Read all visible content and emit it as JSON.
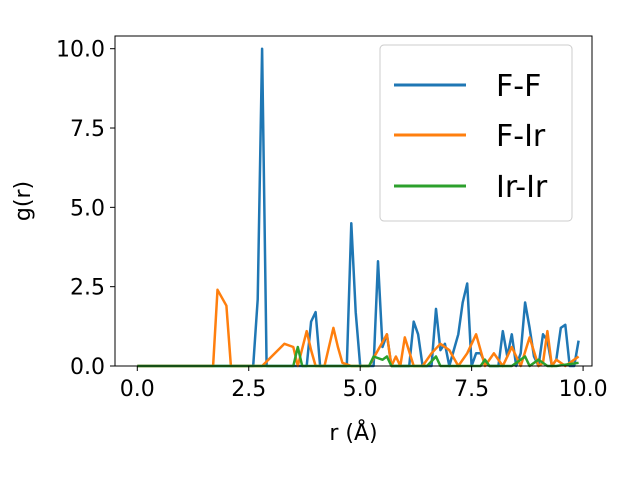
{
  "chart_data": {
    "type": "line",
    "xlabel": "r (Å)",
    "ylabel": "g(r)",
    "xlim": [
      -0.5,
      10.2
    ],
    "ylim": [
      0,
      10.4
    ],
    "xticks": [
      0.0,
      2.5,
      5.0,
      7.5,
      10.0
    ],
    "xtick_labels": [
      "0.0",
      "2.5",
      "5.0",
      "7.5",
      "10.0"
    ],
    "yticks": [
      0.0,
      2.5,
      5.0,
      7.5,
      10.0
    ],
    "ytick_labels": [
      "0.0",
      "2.5",
      "5.0",
      "7.5",
      "10.0"
    ],
    "grid": false,
    "legend_position": "top-right",
    "series": [
      {
        "name": "F-F",
        "color": "#1f77b4",
        "x": [
          0.0,
          2.5,
          2.6,
          2.7,
          2.8,
          2.9,
          3.0,
          3.6,
          3.7,
          3.8,
          3.9,
          4.0,
          4.1,
          4.5,
          4.6,
          4.7,
          4.8,
          4.9,
          5.0,
          5.3,
          5.4,
          5.5,
          5.6,
          5.7,
          5.8,
          6.1,
          6.2,
          6.3,
          6.4,
          6.5,
          6.6,
          6.7,
          6.8,
          6.9,
          7.0,
          7.1,
          7.2,
          7.3,
          7.4,
          7.5,
          7.6,
          7.7,
          7.8,
          7.9,
          8.0,
          8.1,
          8.2,
          8.3,
          8.4,
          8.5,
          8.6,
          8.7,
          8.8,
          8.9,
          9.0,
          9.1,
          9.2,
          9.3,
          9.4,
          9.5,
          9.6,
          9.7,
          9.8,
          9.9
        ],
        "y": [
          0.0,
          0.0,
          0.0,
          2.1,
          10.0,
          0.0,
          0.0,
          0.0,
          0.0,
          0.0,
          1.4,
          1.7,
          0.0,
          0.0,
          0.0,
          0.0,
          4.5,
          1.7,
          0.0,
          0.0,
          3.3,
          0.6,
          1.0,
          0.0,
          0.0,
          0.0,
          1.4,
          1.0,
          0.0,
          0.0,
          0.0,
          1.8,
          0.5,
          0.7,
          0.0,
          0.5,
          1.0,
          2.0,
          2.6,
          0.0,
          0.4,
          0.4,
          0.1,
          0.0,
          0.0,
          0.0,
          1.1,
          0.3,
          1.0,
          0.0,
          0.4,
          2.0,
          1.2,
          0.3,
          0.0,
          1.0,
          0.8,
          0.0,
          0.2,
          1.2,
          1.3,
          0.0,
          0.0,
          0.8
        ]
      },
      {
        "name": "F-Ir",
        "color": "#ff7f0e",
        "x": [
          0.0,
          1.7,
          1.8,
          2.0,
          2.1,
          2.8,
          3.3,
          3.5,
          3.6,
          3.8,
          3.9,
          4.0,
          4.2,
          4.4,
          4.5,
          4.6,
          4.8,
          5.0,
          5.2,
          5.4,
          5.6,
          5.7,
          5.8,
          5.9,
          6.0,
          6.2,
          6.4,
          6.6,
          6.8,
          7.0,
          7.2,
          7.4,
          7.6,
          7.8,
          8.0,
          8.2,
          8.4,
          8.6,
          8.8,
          9.0,
          9.1,
          9.2,
          9.3,
          9.4,
          9.6,
          9.8,
          9.9
        ],
        "y": [
          0.0,
          0.0,
          2.4,
          1.9,
          0.0,
          0.0,
          0.7,
          0.6,
          0.0,
          1.1,
          0.5,
          0.0,
          0.0,
          1.2,
          0.6,
          0.1,
          0.0,
          0.0,
          0.0,
          0.5,
          1.0,
          0.0,
          0.3,
          0.0,
          0.9,
          0.0,
          0.0,
          0.4,
          0.7,
          0.5,
          0.0,
          0.4,
          1.0,
          0.0,
          0.4,
          0.0,
          0.6,
          0.0,
          0.9,
          0.0,
          0.1,
          1.1,
          0.0,
          0.2,
          0.0,
          0.2,
          0.3
        ]
      },
      {
        "name": "Ir-Ir",
        "color": "#2ca02c",
        "x": [
          0.0,
          3.5,
          3.6,
          3.7,
          5.2,
          5.3,
          5.5,
          5.6,
          5.7,
          6.5,
          6.7,
          6.8,
          7.0,
          7.7,
          7.8,
          7.9,
          8.4,
          8.6,
          8.7,
          8.8,
          9.0,
          9.2,
          9.4,
          9.9
        ],
        "y": [
          0.0,
          0.0,
          0.6,
          0.0,
          0.0,
          0.3,
          0.2,
          0.3,
          0.0,
          0.0,
          0.3,
          0.0,
          0.0,
          0.0,
          0.2,
          0.0,
          0.0,
          0.2,
          0.3,
          0.0,
          0.2,
          0.0,
          0.0,
          0.1
        ]
      }
    ]
  }
}
